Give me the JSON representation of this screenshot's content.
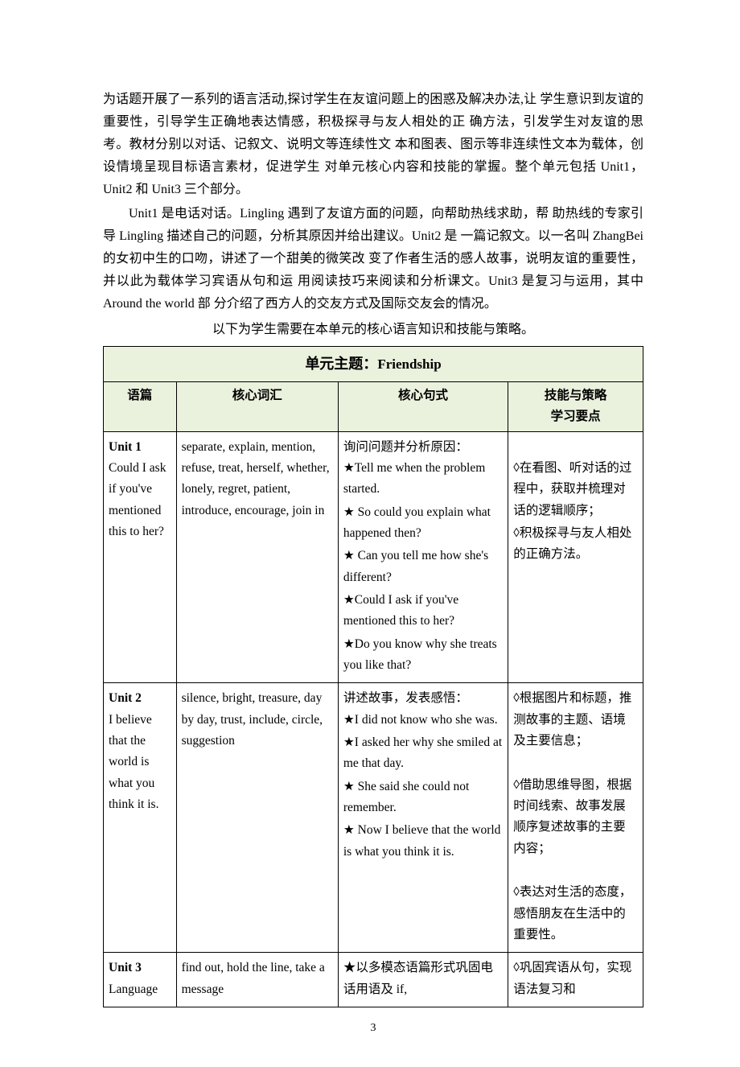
{
  "paragraphs": {
    "p1": "为话题开展了一系列的语言活动,探讨学生在友谊问题上的困惑及解决办法,让 学生意识到友谊的重要性，引导学生正确地表达情感，积极探寻与友人相处的正 确方法，引发学生对友谊的思考。教材分别以对话、记叙文、说明文等连续性文 本和图表、图示等非连续性文本为载体，创设情境呈现目标语言素材，促进学生 对单元核心内容和技能的掌握。整个单元包括 Unit1，Unit2 和 Unit3 三个部分。",
    "p2": "Unit1 是电话对话。Lingling 遇到了友谊方面的问题，向帮助热线求助，帮 助热线的专家引导 Lingling 描述自己的问题，分析其原因并给出建议。Unit2 是 一篇记叙文。以一名叫 ZhangBei 的女初中生的口吻，讲述了一个甜美的微笑改 变了作者生活的感人故事，说明友谊的重要性，并以此为载体学习宾语从句和运 用阅读技巧来阅读和分析课文。Unit3 是复习与运用，其中 Around the world 部 分介绍了西方人的交友方式及国际交友会的情况。",
    "p3": "以下为学生需要在本单元的核心语言知识和技能与策略。"
  },
  "table": {
    "title_cn": "单元主题：",
    "title_en": "Friendship",
    "headers": {
      "h1": "语篇",
      "h2": "核心词汇",
      "h3": "核心句式",
      "h4_l1": "技能与策略",
      "h4_l2": "学习要点"
    },
    "rows": [
      {
        "unit_label": "Unit 1",
        "unit_title": "Could I ask if you've mentioned this to her?",
        "vocab": "separate, explain, mention, refuse, treat, herself, whether, lonely, regret, patient, introduce, encourage, join in",
        "sent_intro": "询问问题并分析原因：",
        "sentences": [
          "Tell me when the problem started.",
          " So could you explain what happened then?",
          " Can you tell me how she's different?",
          "Could I ask if you've mentioned this to her?",
          "Do you know why she treats you like that?"
        ],
        "skills": [
          "在看图、听对话的过程中，获取并梳理对话的逻辑顺序；",
          "积极探寻与友人相处的正确方法。"
        ]
      },
      {
        "unit_label": "Unit 2",
        "unit_title": "I believe that the world is what you think it is.",
        "vocab": "silence, bright, treasure, day by day, trust, include, circle, suggestion",
        "sent_intro": "讲述故事，发表感悟：",
        "sentences": [
          "I did not know who she was.",
          "I asked her why she smiled at me that day.",
          " She said she could not remember.",
          " Now I believe that the world is what you think it is."
        ],
        "skills": [
          "根据图片和标题，推测故事的主题、语境及主要信息；",
          "借助思维导图，根据时间线索、故事发展顺序复述故事的主要内容；",
          "表达对生活的态度，感悟朋友在生活中的重要性。"
        ]
      },
      {
        "unit_label": "Unit 3",
        "unit_title": "Language",
        "vocab": "find out, hold the line, take a message",
        "sent_intro": "",
        "sentences_plain": "以多模态语篇形式巩固电话用语及 if,",
        "skills": [
          "巩固宾语从句，实现语法复习和"
        ]
      }
    ]
  },
  "page_number": "3",
  "symbols": {
    "star": "★",
    "diamond": "◊"
  },
  "colors": {
    "header_bg": "#eaf1dd",
    "border": "#000000",
    "text": "#000000",
    "page_bg": "#ffffff"
  }
}
